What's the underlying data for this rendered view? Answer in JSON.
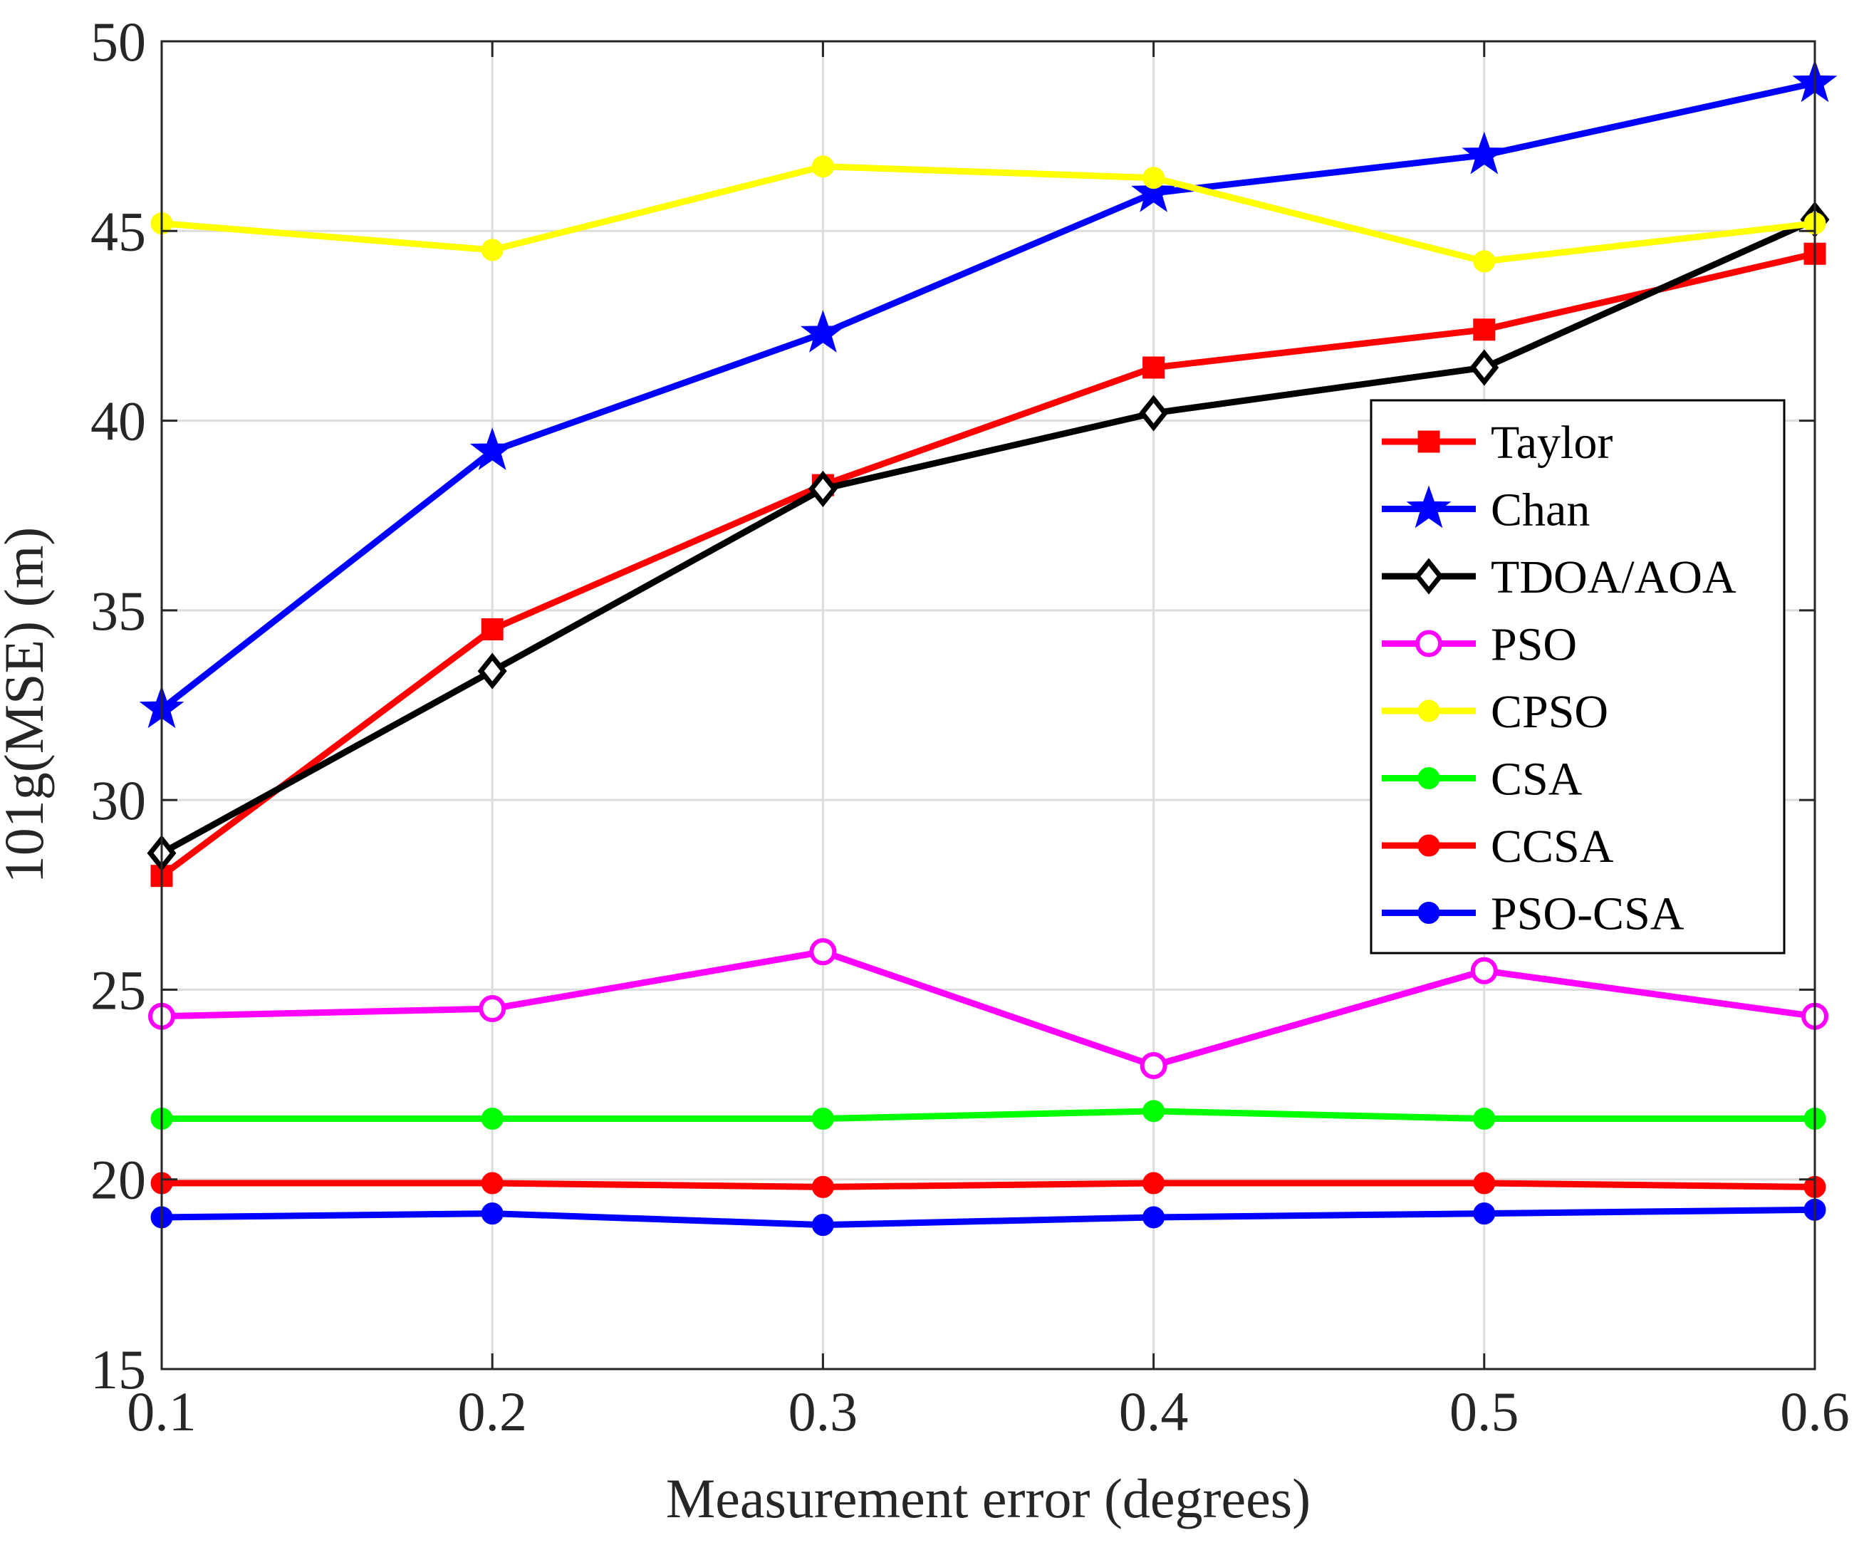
{
  "chart_data": {
    "type": "line",
    "title": "",
    "xlabel": "Measurement error (degrees)",
    "ylabel": "101g(MSE) (m)",
    "xlim": [
      0.1,
      0.6
    ],
    "ylim": [
      15,
      50
    ],
    "xticks": [
      "0.1",
      "0.2",
      "0.3",
      "0.4",
      "0.5",
      "0.6"
    ],
    "yticks": [
      "15",
      "20",
      "25",
      "30",
      "35",
      "40",
      "45",
      "50"
    ],
    "grid": true,
    "legend_position": "right",
    "x": [
      0.1,
      0.2,
      0.3,
      0.4,
      0.5,
      0.6
    ],
    "series": [
      {
        "name": "Taylor",
        "color": "#ff0000",
        "marker": "square",
        "values": [
          28.0,
          34.5,
          38.3,
          41.4,
          42.4,
          44.4
        ]
      },
      {
        "name": "Chan",
        "color": "#0000ff",
        "marker": "star",
        "values": [
          32.4,
          39.2,
          42.3,
          46.0,
          47.0,
          48.9
        ]
      },
      {
        "name": "TDOA/AOA",
        "color": "#000000",
        "marker": "diamond",
        "values": [
          28.6,
          33.4,
          38.2,
          40.2,
          41.4,
          45.3
        ]
      },
      {
        "name": "PSO",
        "color": "#ff00ff",
        "marker": "circle-open",
        "values": [
          24.3,
          24.5,
          26.0,
          23.0,
          25.5,
          24.3
        ]
      },
      {
        "name": "CPSO",
        "color": "#ffff00",
        "marker": "circle",
        "values": [
          45.2,
          44.5,
          46.7,
          46.4,
          44.2,
          45.2
        ]
      },
      {
        "name": "CSA",
        "color": "#00ff00",
        "marker": "circle",
        "values": [
          21.6,
          21.6,
          21.6,
          21.8,
          21.6,
          21.6
        ]
      },
      {
        "name": "CCSA",
        "color": "#ff0000",
        "marker": "circle",
        "values": [
          19.9,
          19.9,
          19.8,
          19.9,
          19.9,
          19.8
        ]
      },
      {
        "name": "PSO-CSA",
        "color": "#0000ff",
        "marker": "circle",
        "values": [
          19.0,
          19.1,
          18.8,
          19.0,
          19.1,
          19.2
        ]
      }
    ]
  }
}
